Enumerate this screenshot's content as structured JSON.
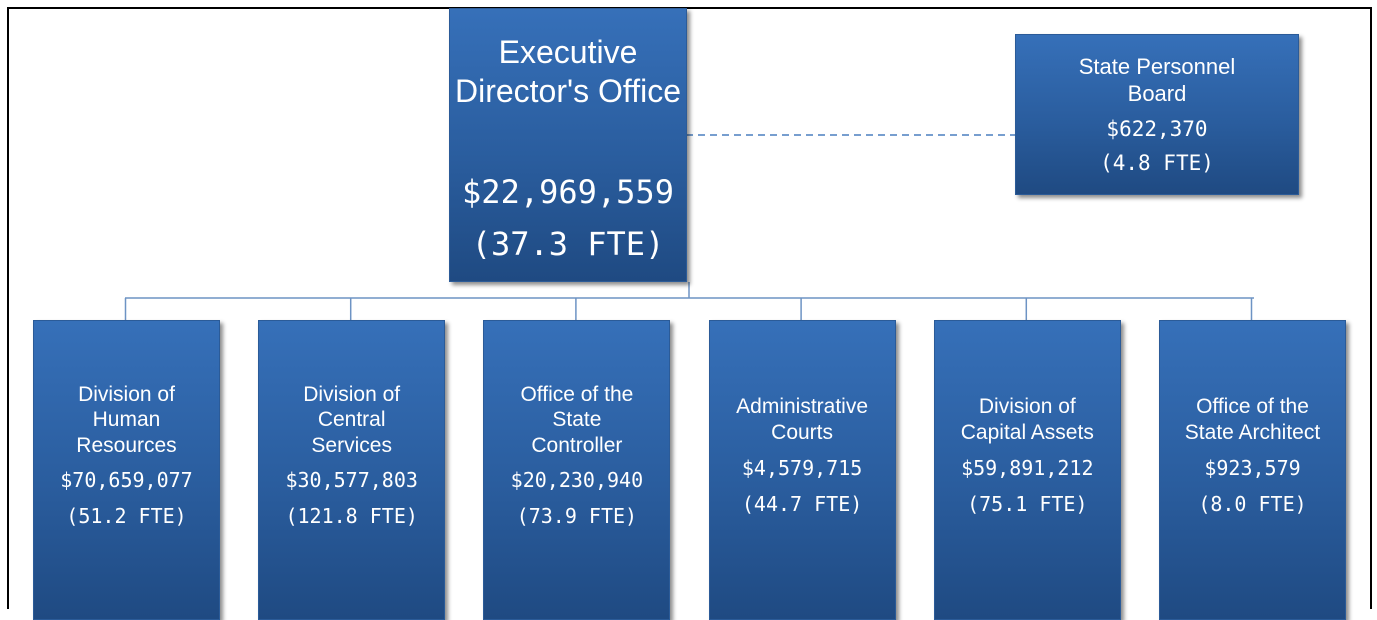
{
  "root": {
    "label_lines": [
      "Executive Director's Office"
    ],
    "budget": "$22,969,559",
    "fte": "(37.3 FTE)"
  },
  "side": {
    "label_lines": [
      "State Personnel",
      "Board"
    ],
    "budget": "$622,370",
    "fte": "(4.8 FTE)"
  },
  "nodes": [
    {
      "label_lines": [
        "Division of",
        "Human",
        "Resources"
      ],
      "budget": "$70,659,077",
      "fte": "(51.2 FTE)"
    },
    {
      "label_lines": [
        "Division of",
        "Central",
        "Services"
      ],
      "budget": "$30,577,803",
      "fte": "(121.8 FTE)"
    },
    {
      "label_lines": [
        "Office of the",
        "State",
        "Controller"
      ],
      "budget": "$20,230,940",
      "fte": "(73.9 FTE)"
    },
    {
      "label_lines": [
        "Administrative",
        "Courts"
      ],
      "budget": "$4,579,715",
      "fte": "(44.7 FTE)"
    },
    {
      "label_lines": [
        "Division of",
        "Capital Assets"
      ],
      "budget": "$59,891,212",
      "fte": "(75.1 FTE)"
    },
    {
      "label_lines": [
        "Office of the",
        "State Architect"
      ],
      "budget": "$923,579",
      "fte": "(8.0 FTE)"
    }
  ]
}
